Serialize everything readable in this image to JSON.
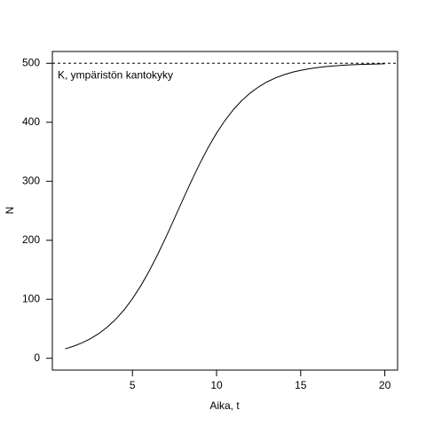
{
  "chart_data": {
    "type": "line",
    "x_label": "Aika, t",
    "y_label": "N",
    "annotation": "K, ympäristön kantokyky",
    "hline": 500,
    "x": [
      1,
      1.5,
      2,
      2.5,
      3,
      3.5,
      4,
      4.5,
      5,
      5.5,
      6,
      6.5,
      7,
      7.5,
      8,
      8.5,
      9,
      9.5,
      10,
      10.5,
      11,
      11.5,
      12,
      12.5,
      13,
      13.5,
      14,
      14.5,
      15,
      15.5,
      16,
      16.5,
      17,
      17.5,
      18,
      18.5,
      19,
      19.5,
      20
    ],
    "series": [
      {
        "color": "#000000",
        "values": [
          16.0,
          20.4,
          26.1,
          33.1,
          41.9,
          52.7,
          66.0,
          81.9,
          101.0,
          123.0,
          148.1,
          175.9,
          205.9,
          237.3,
          269.1,
          300.1,
          329.8,
          357.1,
          381.7,
          403.0,
          421.5,
          436.9,
          449.6,
          460.0,
          468.5,
          475.2,
          480.5,
          484.8,
          488.1,
          490.7,
          492.8,
          494.4,
          495.6,
          496.6,
          497.4,
          498.0,
          498.4,
          498.8,
          499.1
        ]
      }
    ],
    "xlim": [
      0.24,
      20.76
    ],
    "ylim": [
      -20,
      520
    ],
    "xticks": [
      5,
      10,
      15,
      20
    ],
    "yticks": [
      0,
      100,
      200,
      300,
      400,
      500
    ]
  }
}
